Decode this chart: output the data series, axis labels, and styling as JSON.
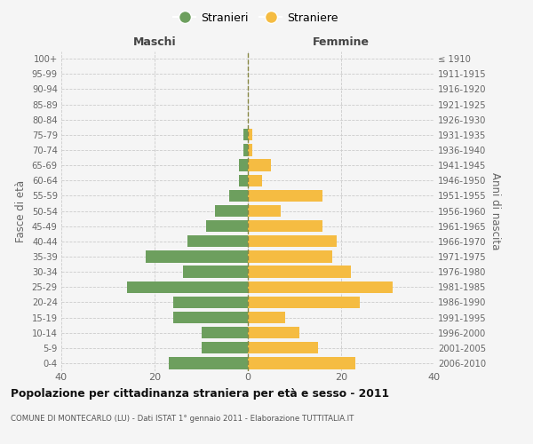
{
  "age_groups": [
    "0-4",
    "5-9",
    "10-14",
    "15-19",
    "20-24",
    "25-29",
    "30-34",
    "35-39",
    "40-44",
    "45-49",
    "50-54",
    "55-59",
    "60-64",
    "65-69",
    "70-74",
    "75-79",
    "80-84",
    "85-89",
    "90-94",
    "95-99",
    "100+"
  ],
  "birth_years": [
    "2006-2010",
    "2001-2005",
    "1996-2000",
    "1991-1995",
    "1986-1990",
    "1981-1985",
    "1976-1980",
    "1971-1975",
    "1966-1970",
    "1961-1965",
    "1956-1960",
    "1951-1955",
    "1946-1950",
    "1941-1945",
    "1936-1940",
    "1931-1935",
    "1926-1930",
    "1921-1925",
    "1916-1920",
    "1911-1915",
    "≤ 1910"
  ],
  "maschi": [
    17,
    10,
    10,
    16,
    16,
    26,
    14,
    22,
    13,
    9,
    7,
    4,
    2,
    2,
    1,
    1,
    0,
    0,
    0,
    0,
    0
  ],
  "femmine": [
    23,
    15,
    11,
    8,
    24,
    31,
    22,
    18,
    19,
    16,
    7,
    16,
    3,
    5,
    1,
    1,
    0,
    0,
    0,
    0,
    0
  ],
  "maschi_color": "#6d9f5e",
  "femmine_color": "#f5bc42",
  "title": "Popolazione per cittadinanza straniera per età e sesso - 2011",
  "subtitle": "COMUNE DI MONTECARLO (LU) - Dati ISTAT 1° gennaio 2011 - Elaborazione TUTTITALIA.IT",
  "xlabel_left": "Maschi",
  "xlabel_right": "Femmine",
  "ylabel_left": "Fasce di età",
  "ylabel_right": "Anni di nascita",
  "legend_maschi": "Stranieri",
  "legend_femmine": "Straniere",
  "xlim": 40,
  "background_color": "#f5f5f5",
  "grid_color": "#cccccc"
}
